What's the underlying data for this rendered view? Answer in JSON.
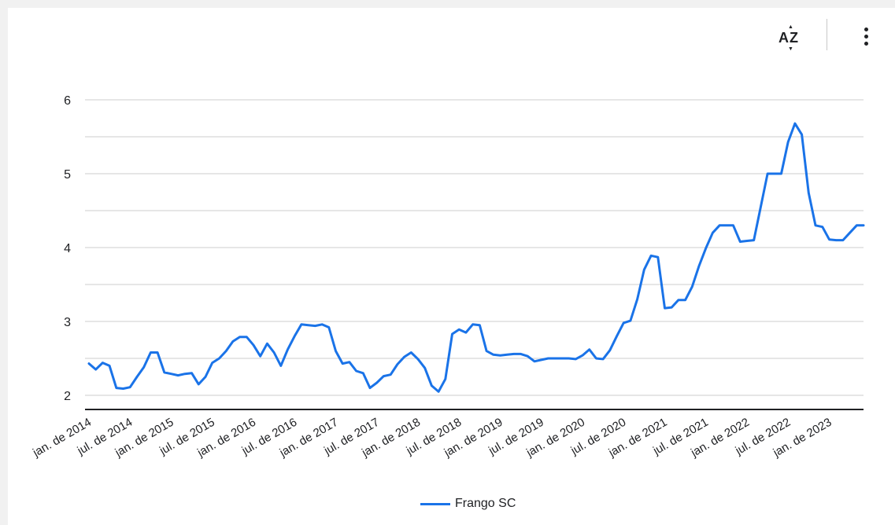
{
  "toolbar": {
    "sort_label": "AZ",
    "sort_icon": "sort-az-icon",
    "menu_icon": "more-vert-icon"
  },
  "chart_data": {
    "type": "line",
    "title": "",
    "xlabel": "",
    "ylabel": "",
    "ylim": [
      1.8,
      6.3
    ],
    "yticks": [
      2,
      3,
      4,
      5,
      6
    ],
    "grid": true,
    "legend_position": "bottom",
    "x_tick_labels": [
      "jan. de 2014",
      "jul. de 2014",
      "jan. de 2015",
      "jul. de 2015",
      "jan. de 2016",
      "jul. de 2016",
      "jan. de 2017",
      "jul. de 2017",
      "jan. de 2018",
      "jul. de 2018",
      "jan. de 2019",
      "jul. de 2019",
      "jan. de 2020",
      "jul. de 2020",
      "jan. de 2021",
      "jul. de 2021",
      "jan. de 2022",
      "jul. de 2022",
      "jan. de 2023"
    ],
    "series": [
      {
        "name": "Frango SC",
        "color": "#1a73e8",
        "start": "2014-01",
        "values": [
          2.43,
          2.35,
          2.44,
          2.4,
          2.1,
          2.09,
          2.11,
          2.25,
          2.38,
          2.58,
          2.58,
          2.31,
          2.29,
          2.27,
          2.29,
          2.3,
          2.15,
          2.25,
          2.44,
          2.5,
          2.6,
          2.73,
          2.79,
          2.79,
          2.68,
          2.53,
          2.7,
          2.58,
          2.4,
          2.62,
          2.8,
          2.96,
          2.95,
          2.94,
          2.96,
          2.92,
          2.6,
          2.43,
          2.45,
          2.33,
          2.3,
          2.1,
          2.17,
          2.26,
          2.28,
          2.42,
          2.52,
          2.58,
          2.49,
          2.37,
          2.13,
          2.05,
          2.22,
          2.83,
          2.89,
          2.85,
          2.96,
          2.95,
          2.6,
          2.55,
          2.54,
          2.55,
          2.56,
          2.56,
          2.53,
          2.46,
          2.48,
          2.5,
          2.5,
          2.5,
          2.5,
          2.49,
          2.54,
          2.62,
          2.5,
          2.49,
          2.61,
          2.8,
          2.98,
          3.01,
          3.3,
          3.7,
          3.89,
          3.87,
          3.18,
          3.19,
          3.29,
          3.29,
          3.47,
          3.75,
          3.99,
          4.2,
          4.3,
          4.3,
          4.3,
          4.08,
          4.09,
          4.1,
          4.55,
          5.0,
          5.0,
          5.0,
          5.43,
          5.68,
          5.53,
          4.74,
          4.3,
          4.28,
          4.11,
          4.1,
          4.1,
          4.2,
          4.3,
          4.3
        ]
      }
    ]
  }
}
